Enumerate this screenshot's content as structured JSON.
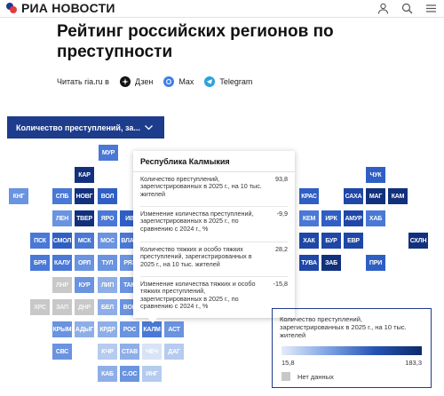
{
  "header": {
    "logo_text": "РИА НОВОСТИ",
    "icons": [
      "user-icon",
      "search-icon",
      "menu-icon"
    ]
  },
  "article": {
    "title": "Рейтинг российских регионов по преступности"
  },
  "read_on": {
    "label": "Читать ria.ru в",
    "channels": [
      {
        "name": "Дзен",
        "icon": "dzen-icon"
      },
      {
        "name": "Max",
        "icon": "max-icon"
      },
      {
        "name": "Telegram",
        "icon": "telegram-icon"
      }
    ]
  },
  "selector": {
    "label": "Количество преступлений, за..."
  },
  "colors": {
    "c1": "#d8e3f6",
    "c2": "#b5cbef",
    "c3": "#8eaee7",
    "c4": "#6a93e0",
    "c5": "#4a78d6",
    "c6": "#2f5fc4",
    "c7": "#1e47a8",
    "c8": "#12317d",
    "nodata": "#c8c8c8",
    "accent": "#1e3c8c"
  },
  "map": {
    "cells": [
      {
        "label": "МУР",
        "shade": "c5"
      },
      {
        "label": "ЧУК",
        "shade": "c6"
      },
      {
        "label": "КАР",
        "shade": "c8"
      },
      {
        "label": "КНГ",
        "shade": "c4"
      },
      {
        "label": "СПБ",
        "shade": "c5"
      },
      {
        "label": "НОВГ",
        "shade": "c8"
      },
      {
        "label": "ВОЛ",
        "shade": "c6"
      },
      {
        "label": "КРАС",
        "shade": "c6"
      },
      {
        "label": "САХА",
        "shade": "c7"
      },
      {
        "label": "МАГ",
        "shade": "c8"
      },
      {
        "label": "КАМ",
        "shade": "c8"
      },
      {
        "label": "ЛЕН",
        "shade": "c4"
      },
      {
        "label": "ТВЕР",
        "shade": "c8"
      },
      {
        "label": "ЯРО",
        "shade": "c5"
      },
      {
        "label": "ИВ",
        "shade": "c6"
      },
      {
        "label": "КЕМ",
        "shade": "c5"
      },
      {
        "label": "ИРК",
        "shade": "c6"
      },
      {
        "label": "АМУР",
        "shade": "c7"
      },
      {
        "label": "ХАБ",
        "shade": "c5"
      },
      {
        "label": "ПСК",
        "shade": "c5"
      },
      {
        "label": "СМОЛ",
        "shade": "c6"
      },
      {
        "label": "МСК",
        "shade": "c5"
      },
      {
        "label": "МОС",
        "shade": "c4"
      },
      {
        "label": "ВЛАД",
        "shade": "c5"
      },
      {
        "label": "ХАК",
        "shade": "c7"
      },
      {
        "label": "БУР",
        "shade": "c7"
      },
      {
        "label": "ЕВР",
        "shade": "c7"
      },
      {
        "label": "СХЛН",
        "shade": "c8"
      },
      {
        "label": "БРЯ",
        "shade": "c5"
      },
      {
        "label": "КАЛУ",
        "shade": "c5"
      },
      {
        "label": "ОРЛ",
        "shade": "c4"
      },
      {
        "label": "ТУЛ",
        "shade": "c4"
      },
      {
        "label": "РЯЗ",
        "shade": "c4"
      },
      {
        "label": "ТУВА",
        "shade": "c7"
      },
      {
        "label": "ЗАБ",
        "shade": "c8"
      },
      {
        "label": "ПРИ",
        "shade": "c6"
      },
      {
        "label": "ЛНР",
        "shade": "nodata"
      },
      {
        "label": "КУР",
        "shade": "c4"
      },
      {
        "label": "ЛИП",
        "shade": "c3"
      },
      {
        "label": "ТАМ",
        "shade": "c4"
      },
      {
        "label": "ХРС",
        "shade": "nodata"
      },
      {
        "label": "ЗАП",
        "shade": "nodata"
      },
      {
        "label": "ДНР",
        "shade": "nodata"
      },
      {
        "label": "БЕЛ",
        "shade": "c3"
      },
      {
        "label": "ВОР",
        "shade": "c4"
      },
      {
        "label": "КРЫМ",
        "shade": "c4"
      },
      {
        "label": "АДЫГ",
        "shade": "c3"
      },
      {
        "label": "КРДР",
        "shade": "c3"
      },
      {
        "label": "РОС",
        "shade": "c4"
      },
      {
        "label": "КАЛМ",
        "shade": "c5"
      },
      {
        "label": "АСТ",
        "shade": "c4"
      },
      {
        "label": "СВС",
        "shade": "c4"
      },
      {
        "label": "КЧР",
        "shade": "c2"
      },
      {
        "label": "СТАВ",
        "shade": "c3"
      },
      {
        "label": "ЧЕЧ",
        "shade": "c1"
      },
      {
        "label": "ДАГ",
        "shade": "c2"
      },
      {
        "label": "КАБ",
        "shade": "c3"
      },
      {
        "label": "С.ОС",
        "shade": "c4"
      },
      {
        "label": "ИНГ",
        "shade": "c2"
      }
    ]
  },
  "tooltip": {
    "region": "Республика Калмыкия",
    "rows": [
      {
        "label": "Количество преступлений, зарегистрированных в 2025 г., на 10 тыс. жителей",
        "value": "93,8"
      },
      {
        "label": "Изменение количества преступлений, зарегистрированных в 2025 г., по сравнению с 2024 г., %",
        "value": "-9,9"
      },
      {
        "label": "Количество тяжких и особо тяжких преступлений, зарегистрированных в 2025 г., на 10 тыс. жителей",
        "value": "28,2"
      },
      {
        "label": "Изменение количества тяжких и особо тяжких преступлений, зарегистрированных в 2025 г., по сравнению с 2024 г., %",
        "value": "-15,8"
      }
    ]
  },
  "legend": {
    "title": "Количество преступлений, зарегистрированных в 2025 г., на 10 тыс. жителей",
    "min": "15,8",
    "max": "183,3",
    "nodata_label": "Нет данных"
  }
}
